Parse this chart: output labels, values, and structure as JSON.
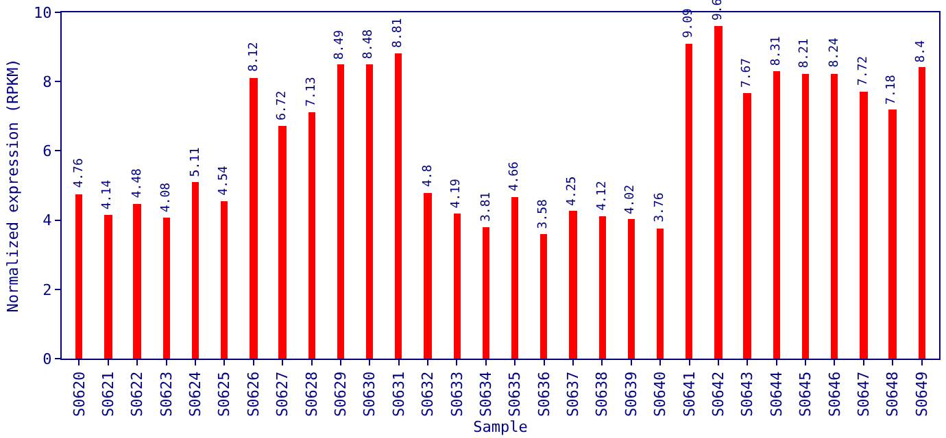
{
  "chart_data": {
    "type": "bar",
    "xlabel": "Sample",
    "ylabel": "Normalized expression (RPKM)",
    "categories": [
      "S0620",
      "S0621",
      "S0622",
      "S0623",
      "S0624",
      "S0625",
      "S0626",
      "S0627",
      "S0628",
      "S0629",
      "S0630",
      "S0631",
      "S0632",
      "S0633",
      "S0634",
      "S0635",
      "S0636",
      "S0637",
      "S0638",
      "S0639",
      "S0640",
      "S0641",
      "S0642",
      "S0643",
      "S0644",
      "S0645",
      "S0646",
      "S0647",
      "S0648",
      "S0649"
    ],
    "values": [
      4.76,
      4.14,
      4.48,
      4.08,
      5.11,
      4.54,
      8.12,
      6.72,
      7.13,
      8.49,
      8.48,
      8.81,
      4.8,
      4.19,
      3.81,
      4.66,
      3.58,
      4.25,
      4.12,
      4.02,
      3.76,
      9.09,
      9.6,
      7.67,
      8.31,
      8.21,
      8.24,
      7.72,
      7.18,
      8.4
    ],
    "color": "#ff0000",
    "ylim": [
      0,
      10
    ],
    "yticks": [
      0,
      2,
      4,
      6,
      8,
      10
    ],
    "data_labels": true,
    "grid": false
  }
}
